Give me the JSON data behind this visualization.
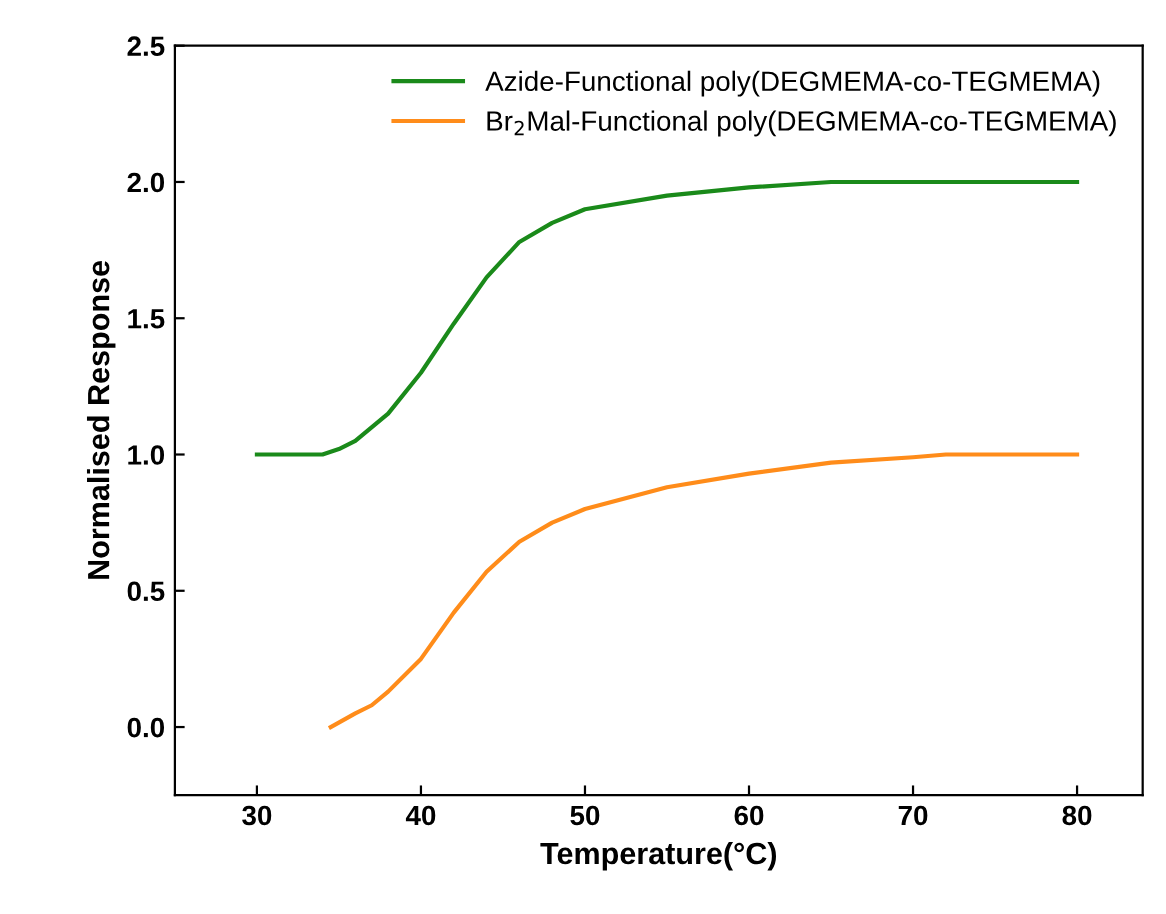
{
  "chart_data": {
    "type": "line",
    "xlabel": "Temperature(°C)",
    "ylabel": "Normalised Response",
    "xlim": [
      25,
      84
    ],
    "xticks": [
      30,
      40,
      50,
      60,
      70,
      80
    ],
    "ylim": [
      -0.25,
      2.5
    ],
    "yticks": [
      {
        "value": 0,
        "label": "0.0"
      },
      0.5,
      {
        "value": 1,
        "label": "1.0"
      },
      1.5,
      {
        "value": 2,
        "label": "2.0"
      },
      2.5
    ],
    "grid": false,
    "legend": "top right",
    "marker": "none",
    "line_style": "solid",
    "series": [
      {
        "name": "Azide-Functional poly(DEGMEMA-co-TEGMEMA)",
        "color": "#1a8a1a",
        "x": [
          30,
          32,
          34,
          35,
          36,
          38,
          40,
          42,
          44,
          46,
          48,
          50,
          55,
          60,
          65,
          70,
          80
        ],
        "values": [
          1.0,
          1.0,
          1.0,
          1.02,
          1.05,
          1.15,
          1.3,
          1.48,
          1.65,
          1.78,
          1.85,
          1.9,
          1.95,
          1.98,
          2.0,
          2.0,
          2.0
        ]
      },
      {
        "name": "Br$_{2}$Mal-Functional poly(DEGMEMA-co-TEGMEMA)",
        "color": "#ff8c1a",
        "x": [
          34.5,
          36,
          37,
          38,
          40,
          42,
          44,
          46,
          48,
          50,
          55,
          60,
          65,
          70,
          72,
          80
        ],
        "values": [
          0.0,
          0.05,
          0.08,
          0.13,
          0.25,
          0.42,
          0.57,
          0.68,
          0.75,
          0.8,
          0.88,
          0.93,
          0.97,
          0.99,
          1.0,
          1.0
        ]
      }
    ]
  }
}
